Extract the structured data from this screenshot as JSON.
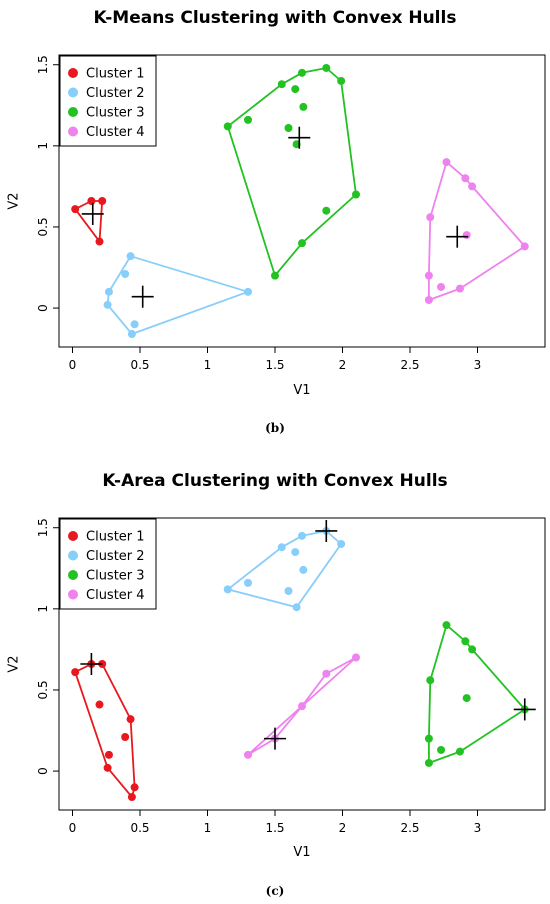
{
  "chart_data": [
    {
      "type": "scatter",
      "title": "K-Means Clustering with Convex Hulls",
      "xlabel": "V1",
      "ylabel": "V2",
      "caption": "(b)",
      "xlim": [
        -0.1,
        3.5
      ],
      "ylim": [
        -0.24,
        1.56
      ],
      "xticks": [
        0,
        0.5,
        1,
        1.5,
        2,
        2.5,
        3
      ],
      "xtick_labels": [
        "0",
        "0.5",
        "1",
        "1.5",
        "2",
        "2.5",
        "3"
      ],
      "yticks": [
        0,
        0.5,
        1,
        1.5
      ],
      "ytick_labels": [
        "0",
        "0.5",
        "1",
        "1.5"
      ],
      "grid": false,
      "legend_position": "top-left",
      "series": [
        {
          "name": "Cluster 1",
          "color": "#e8191e",
          "points": [
            [
              0.02,
              0.61
            ],
            [
              0.14,
              0.66
            ],
            [
              0.22,
              0.66
            ],
            [
              0.2,
              0.41
            ]
          ],
          "hull": [
            [
              0.02,
              0.61
            ],
            [
              0.14,
              0.66
            ],
            [
              0.22,
              0.66
            ],
            [
              0.2,
              0.41
            ]
          ],
          "center": [
            0.15,
            0.58
          ]
        },
        {
          "name": "Cluster 2",
          "color": "#87cefa",
          "points": [
            [
              0.43,
              0.32
            ],
            [
              0.39,
              0.21
            ],
            [
              0.27,
              0.1
            ],
            [
              0.26,
              0.02
            ],
            [
              0.46,
              -0.1
            ],
            [
              0.44,
              -0.16
            ],
            [
              1.3,
              0.1
            ]
          ],
          "hull": [
            [
              0.43,
              0.32
            ],
            [
              1.3,
              0.1
            ],
            [
              0.44,
              -0.16
            ],
            [
              0.26,
              0.02
            ],
            [
              0.27,
              0.1
            ]
          ],
          "center": [
            0.52,
            0.07
          ]
        },
        {
          "name": "Cluster 3",
          "color": "#22c222",
          "points": [
            [
              1.15,
              1.12
            ],
            [
              1.3,
              1.16
            ],
            [
              1.55,
              1.38
            ],
            [
              1.7,
              1.45
            ],
            [
              1.88,
              1.48
            ],
            [
              1.99,
              1.4
            ],
            [
              1.65,
              1.35
            ],
            [
              1.71,
              1.24
            ],
            [
              1.6,
              1.11
            ],
            [
              1.66,
              1.01
            ],
            [
              2.1,
              0.7
            ],
            [
              1.88,
              0.6
            ],
            [
              1.7,
              0.4
            ],
            [
              1.5,
              0.2
            ]
          ],
          "hull": [
            [
              1.15,
              1.12
            ],
            [
              1.55,
              1.38
            ],
            [
              1.7,
              1.45
            ],
            [
              1.88,
              1.48
            ],
            [
              1.99,
              1.4
            ],
            [
              2.1,
              0.7
            ],
            [
              1.7,
              0.4
            ],
            [
              1.5,
              0.2
            ]
          ],
          "center": [
            1.68,
            1.05
          ]
        },
        {
          "name": "Cluster 4",
          "color": "#ee82ee",
          "points": [
            [
              2.77,
              0.9
            ],
            [
              2.91,
              0.8
            ],
            [
              2.96,
              0.75
            ],
            [
              2.65,
              0.56
            ],
            [
              2.92,
              0.45
            ],
            [
              3.35,
              0.38
            ],
            [
              2.64,
              0.2
            ],
            [
              2.73,
              0.13
            ],
            [
              2.87,
              0.12
            ],
            [
              2.64,
              0.05
            ]
          ],
          "hull": [
            [
              2.77,
              0.9
            ],
            [
              2.91,
              0.8
            ],
            [
              2.96,
              0.75
            ],
            [
              3.35,
              0.38
            ],
            [
              2.87,
              0.12
            ],
            [
              2.64,
              0.05
            ],
            [
              2.64,
              0.2
            ],
            [
              2.65,
              0.56
            ]
          ],
          "center": [
            2.85,
            0.44
          ]
        }
      ]
    },
    {
      "type": "scatter",
      "title": "K-Area Clustering with Convex Hulls",
      "xlabel": "V1",
      "ylabel": "V2",
      "caption": "(c)",
      "xlim": [
        -0.1,
        3.5
      ],
      "ylim": [
        -0.24,
        1.56
      ],
      "xticks": [
        0,
        0.5,
        1,
        1.5,
        2,
        2.5,
        3
      ],
      "xtick_labels": [
        "0",
        "0.5",
        "1",
        "1.5",
        "2",
        "2.5",
        "3"
      ],
      "yticks": [
        0,
        0.5,
        1,
        1.5
      ],
      "ytick_labels": [
        "0",
        "0.5",
        "1",
        "1.5"
      ],
      "grid": false,
      "legend_position": "top-left",
      "series": [
        {
          "name": "Cluster 1",
          "color": "#e8191e",
          "points": [
            [
              0.02,
              0.61
            ],
            [
              0.14,
              0.66
            ],
            [
              0.22,
              0.66
            ],
            [
              0.2,
              0.41
            ],
            [
              0.43,
              0.32
            ],
            [
              0.39,
              0.21
            ],
            [
              0.27,
              0.1
            ],
            [
              0.26,
              0.02
            ],
            [
              0.46,
              -0.1
            ],
            [
              0.44,
              -0.16
            ]
          ],
          "hull": [
            [
              0.02,
              0.61
            ],
            [
              0.14,
              0.66
            ],
            [
              0.22,
              0.66
            ],
            [
              0.43,
              0.32
            ],
            [
              0.46,
              -0.1
            ],
            [
              0.44,
              -0.16
            ],
            [
              0.26,
              0.02
            ]
          ],
          "center": [
            0.14,
            0.66
          ]
        },
        {
          "name": "Cluster 2",
          "color": "#87cefa",
          "points": [
            [
              1.15,
              1.12
            ],
            [
              1.3,
              1.16
            ],
            [
              1.55,
              1.38
            ],
            [
              1.7,
              1.45
            ],
            [
              1.88,
              1.48
            ],
            [
              1.99,
              1.4
            ],
            [
              1.65,
              1.35
            ],
            [
              1.71,
              1.24
            ],
            [
              1.6,
              1.11
            ],
            [
              1.66,
              1.01
            ]
          ],
          "hull": [
            [
              1.15,
              1.12
            ],
            [
              1.55,
              1.38
            ],
            [
              1.7,
              1.45
            ],
            [
              1.88,
              1.48
            ],
            [
              1.99,
              1.4
            ],
            [
              1.66,
              1.01
            ]
          ],
          "center": [
            1.88,
            1.48
          ]
        },
        {
          "name": "Cluster 3",
          "color": "#22c222",
          "points": [
            [
              2.77,
              0.9
            ],
            [
              2.91,
              0.8
            ],
            [
              2.96,
              0.75
            ],
            [
              2.65,
              0.56
            ],
            [
              2.92,
              0.45
            ],
            [
              3.35,
              0.38
            ],
            [
              2.64,
              0.2
            ],
            [
              2.73,
              0.13
            ],
            [
              2.87,
              0.12
            ],
            [
              2.64,
              0.05
            ]
          ],
          "hull": [
            [
              2.77,
              0.9
            ],
            [
              2.91,
              0.8
            ],
            [
              2.96,
              0.75
            ],
            [
              3.35,
              0.38
            ],
            [
              2.87,
              0.12
            ],
            [
              2.64,
              0.05
            ],
            [
              2.64,
              0.2
            ],
            [
              2.65,
              0.56
            ]
          ],
          "center": [
            3.35,
            0.38
          ]
        },
        {
          "name": "Cluster 4",
          "color": "#ee82ee",
          "points": [
            [
              1.3,
              0.1
            ],
            [
              1.5,
              0.2
            ],
            [
              1.7,
              0.4
            ],
            [
              1.88,
              0.6
            ],
            [
              2.1,
              0.7
            ]
          ],
          "hull": [
            [
              1.3,
              0.1
            ],
            [
              2.1,
              0.7
            ],
            [
              1.88,
              0.6
            ],
            [
              1.7,
              0.4
            ],
            [
              1.5,
              0.2
            ]
          ],
          "center": [
            1.5,
            0.2
          ]
        }
      ]
    }
  ]
}
